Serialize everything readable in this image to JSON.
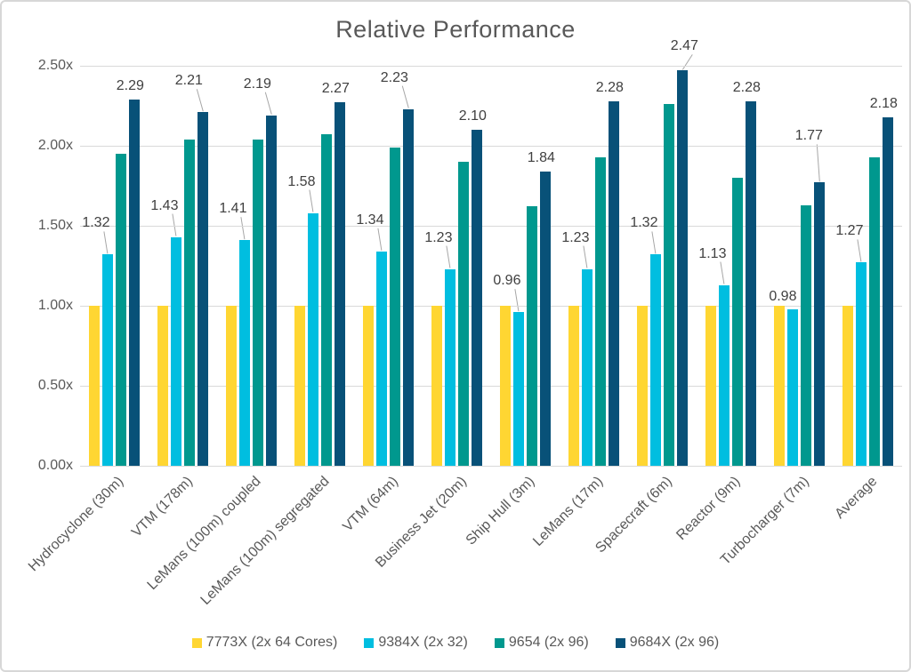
{
  "chart_data": {
    "type": "bar",
    "title": "Relative Performance",
    "categories": [
      "Hydrocyclone (30m)",
      "VTM (178m)",
      "LeMans (100m) coupled",
      "LeMans (100m) segregated",
      "VTM (64m)",
      "Business Jet (20m)",
      "Ship Hull (3m)",
      "LeMans (17m)",
      "Spacecraft (6m)",
      "Reactor (9m)",
      "Turbocharger (7m)",
      "Average"
    ],
    "series": [
      {
        "name": "7773X (2x 64 Cores)",
        "color": "#FFD632",
        "values": [
          1.0,
          1.0,
          1.0,
          1.0,
          1.0,
          1.0,
          1.0,
          1.0,
          1.0,
          1.0,
          1.0,
          1.0
        ],
        "show_labels": false
      },
      {
        "name": "9384X (2x 32)",
        "color": "#00BEE0",
        "values": [
          1.32,
          1.43,
          1.41,
          1.58,
          1.34,
          1.23,
          0.96,
          1.23,
          1.32,
          1.13,
          0.98,
          1.27
        ],
        "show_labels": true,
        "callout_lines": [
          true,
          true,
          true,
          true,
          true,
          true,
          true,
          true,
          true,
          true,
          false,
          true
        ]
      },
      {
        "name": "9654 (2x 96)",
        "color": "#00988E",
        "values": [
          1.95,
          2.04,
          2.04,
          2.07,
          1.99,
          1.9,
          1.62,
          1.93,
          2.26,
          1.8,
          1.63,
          1.93
        ],
        "show_labels": false
      },
      {
        "name": "9684X (2x 96)",
        "color": "#085178",
        "values": [
          2.29,
          2.21,
          2.19,
          2.27,
          2.23,
          2.1,
          1.84,
          2.28,
          2.47,
          2.28,
          1.77,
          2.18
        ],
        "show_labels": true,
        "callout_lines": [
          false,
          true,
          true,
          false,
          true,
          false,
          false,
          false,
          true,
          false,
          true,
          false
        ]
      }
    ],
    "ylim": [
      0,
      2.5
    ],
    "ytick_step": 0.5,
    "ytick_labels": [
      "0.00x",
      "0.50x",
      "1.00x",
      "1.50x",
      "2.00x",
      "2.50x"
    ],
    "value_label_format": "2dp",
    "grid": true,
    "legend_position": "bottom",
    "colors": {
      "title_text": "#595959",
      "axis_text": "#595959",
      "value_label_text": "#404040",
      "gridline": "#d9d9d9",
      "leader_line": "#a6a6a6",
      "frame_border": "#d7d7d7",
      "background": "#ffffff"
    }
  }
}
